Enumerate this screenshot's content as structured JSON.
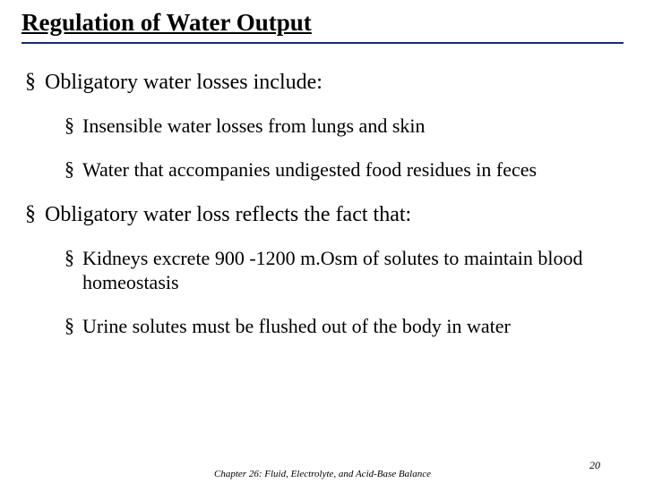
{
  "title": "Regulation of Water Output",
  "bullet_glyph": "§",
  "colors": {
    "title_underline": "#1a2a6c",
    "text": "#000000",
    "background": "#ffffff"
  },
  "typography": {
    "family": "Times New Roman",
    "title_fontsize": 27,
    "lvl1_fontsize": 24,
    "lvl2_fontsize": 22,
    "footer_fontsize": 11
  },
  "items": [
    {
      "text": "Obligatory water losses include:",
      "children": [
        {
          "text": "Insensible water losses from lungs and skin"
        },
        {
          "text": "Water that accompanies undigested food residues in feces"
        }
      ]
    },
    {
      "text": "Obligatory water loss reflects the fact that:",
      "children": [
        {
          "text": "Kidneys excrete 900 -1200 m.Osm of solutes to maintain blood homeostasis"
        },
        {
          "text": "Urine solutes must be flushed out of the body in water"
        }
      ]
    }
  ],
  "footer": "Chapter 26: Fluid, Electrolyte, and Acid-Base Balance",
  "page_number": "20"
}
